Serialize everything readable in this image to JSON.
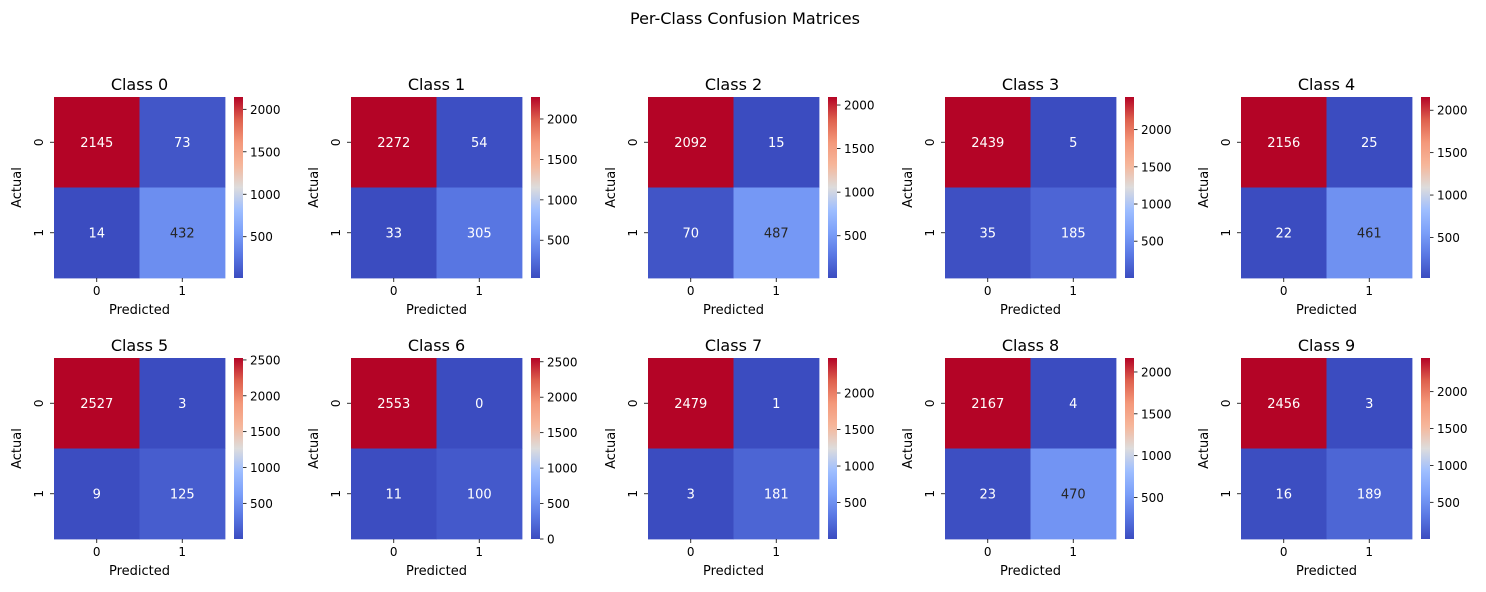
{
  "figure": {
    "title": "Per-Class Confusion Matrices"
  },
  "chart_data": [
    {
      "type": "heatmap",
      "title": "Class 0",
      "xlabel": "Predicted",
      "ylabel": "Actual",
      "x_ticks": [
        "0",
        "1"
      ],
      "y_ticks": [
        "0",
        "1"
      ],
      "values": [
        [
          2145,
          73
        ],
        [
          14,
          432
        ]
      ],
      "colorbar_ticks": [
        500,
        1000,
        1500,
        2000
      ],
      "colormap": "coolwarm"
    },
    {
      "type": "heatmap",
      "title": "Class 1",
      "xlabel": "Predicted",
      "ylabel": "Actual",
      "x_ticks": [
        "0",
        "1"
      ],
      "y_ticks": [
        "0",
        "1"
      ],
      "values": [
        [
          2272,
          54
        ],
        [
          33,
          305
        ]
      ],
      "colorbar_ticks": [
        500,
        1000,
        1500,
        2000
      ],
      "colormap": "coolwarm"
    },
    {
      "type": "heatmap",
      "title": "Class 2",
      "xlabel": "Predicted",
      "ylabel": "Actual",
      "x_ticks": [
        "0",
        "1"
      ],
      "y_ticks": [
        "0",
        "1"
      ],
      "values": [
        [
          2092,
          15
        ],
        [
          70,
          487
        ]
      ],
      "colorbar_ticks": [
        500,
        1000,
        1500,
        2000
      ],
      "colormap": "coolwarm"
    },
    {
      "type": "heatmap",
      "title": "Class 3",
      "xlabel": "Predicted",
      "ylabel": "Actual",
      "x_ticks": [
        "0",
        "1"
      ],
      "y_ticks": [
        "0",
        "1"
      ],
      "values": [
        [
          2439,
          5
        ],
        [
          35,
          185
        ]
      ],
      "colorbar_ticks": [
        500,
        1000,
        1500,
        2000
      ],
      "colormap": "coolwarm"
    },
    {
      "type": "heatmap",
      "title": "Class 4",
      "xlabel": "Predicted",
      "ylabel": "Actual",
      "x_ticks": [
        "0",
        "1"
      ],
      "y_ticks": [
        "0",
        "1"
      ],
      "values": [
        [
          2156,
          25
        ],
        [
          22,
          461
        ]
      ],
      "colorbar_ticks": [
        500,
        1000,
        1500,
        2000
      ],
      "colormap": "coolwarm"
    },
    {
      "type": "heatmap",
      "title": "Class 5",
      "xlabel": "Predicted",
      "ylabel": "Actual",
      "x_ticks": [
        "0",
        "1"
      ],
      "y_ticks": [
        "0",
        "1"
      ],
      "values": [
        [
          2527,
          3
        ],
        [
          9,
          125
        ]
      ],
      "colorbar_ticks": [
        500,
        1000,
        1500,
        2000,
        2500
      ],
      "colormap": "coolwarm"
    },
    {
      "type": "heatmap",
      "title": "Class 6",
      "xlabel": "Predicted",
      "ylabel": "Actual",
      "x_ticks": [
        "0",
        "1"
      ],
      "y_ticks": [
        "0",
        "1"
      ],
      "values": [
        [
          2553,
          0
        ],
        [
          11,
          100
        ]
      ],
      "colorbar_ticks": [
        0,
        500,
        1000,
        1500,
        2000,
        2500
      ],
      "colormap": "coolwarm"
    },
    {
      "type": "heatmap",
      "title": "Class 7",
      "xlabel": "Predicted",
      "ylabel": "Actual",
      "x_ticks": [
        "0",
        "1"
      ],
      "y_ticks": [
        "0",
        "1"
      ],
      "values": [
        [
          2479,
          1
        ],
        [
          3,
          181
        ]
      ],
      "colorbar_ticks": [
        500,
        1000,
        1500,
        2000
      ],
      "colormap": "coolwarm"
    },
    {
      "type": "heatmap",
      "title": "Class 8",
      "xlabel": "Predicted",
      "ylabel": "Actual",
      "x_ticks": [
        "0",
        "1"
      ],
      "y_ticks": [
        "0",
        "1"
      ],
      "values": [
        [
          2167,
          4
        ],
        [
          23,
          470
        ]
      ],
      "colorbar_ticks": [
        500,
        1000,
        1500,
        2000
      ],
      "colormap": "coolwarm"
    },
    {
      "type": "heatmap",
      "title": "Class 9",
      "xlabel": "Predicted",
      "ylabel": "Actual",
      "x_ticks": [
        "0",
        "1"
      ],
      "y_ticks": [
        "0",
        "1"
      ],
      "values": [
        [
          2456,
          3
        ],
        [
          16,
          189
        ]
      ],
      "colorbar_ticks": [
        500,
        1000,
        1500,
        2000
      ],
      "colormap": "coolwarm"
    }
  ]
}
